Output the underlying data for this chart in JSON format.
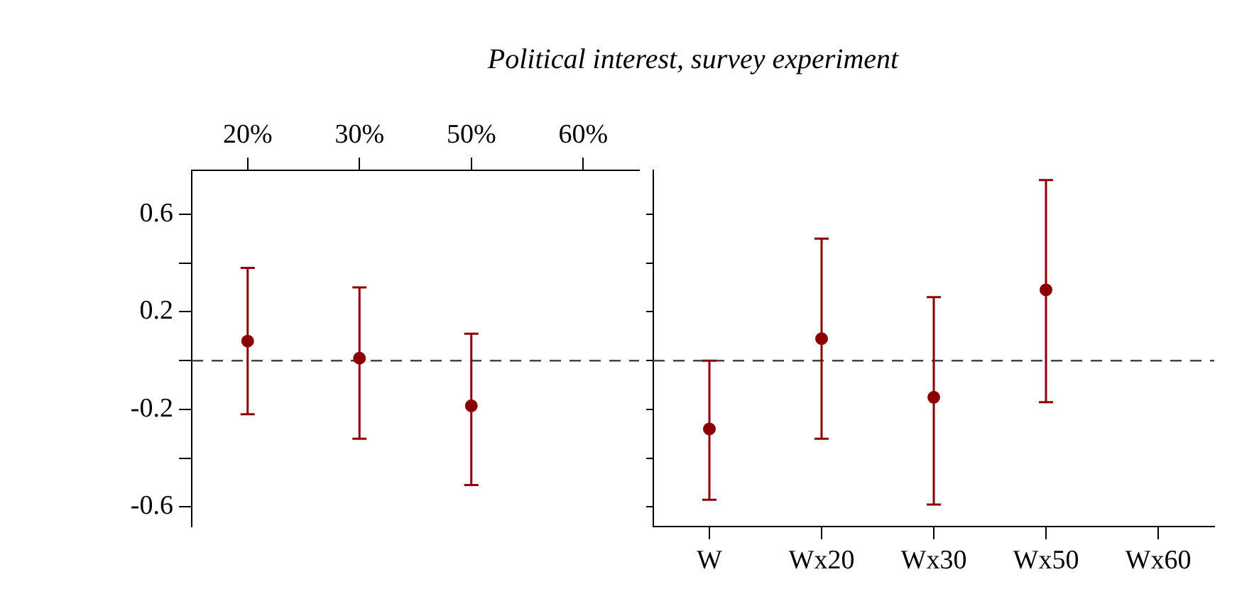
{
  "chart_data": [
    {
      "type": "scatter",
      "title": "Political interest, survey experiment",
      "categories": [
        "20%",
        "30%",
        "50%",
        "60%"
      ],
      "series": [
        {
          "color": "#8b0000",
          "values": [
            0.08,
            0.01,
            -0.185,
            null
          ],
          "errors": [
            [
              -0.22,
              0.38
            ],
            [
              -0.32,
              0.3
            ],
            [
              -0.51,
              0.11
            ],
            null
          ]
        }
      ],
      "ylim": [
        -0.68,
        0.78
      ],
      "yticks": [
        -0.6,
        {
          "value": -0.4,
          "label": null
        },
        -0.2,
        {
          "value": 0,
          "label": null
        },
        0.2,
        {
          "value": 0.4,
          "label": null
        },
        0.6
      ],
      "ref_lines": [
        {
          "axis": "y",
          "value": 0,
          "line_style": "dashed"
        }
      ],
      "marker": "circle"
    },
    {
      "type": "scatter",
      "categories": [
        "W",
        "Wx20",
        "Wx30",
        "Wx50",
        "Wx60"
      ],
      "series": [
        {
          "color": "#8b0000",
          "values": [
            -0.28,
            0.09,
            -0.15,
            0.29,
            null
          ],
          "errors": [
            [
              -0.57,
              0.0
            ],
            [
              -0.32,
              0.5
            ],
            [
              -0.59,
              0.26
            ],
            [
              -0.17,
              0.74
            ],
            null
          ]
        }
      ],
      "ylim": [
        -0.68,
        0.78
      ],
      "yticks": [
        -0.6,
        {
          "value": -0.4,
          "label": null
        },
        -0.2,
        {
          "value": 0,
          "label": null
        },
        0.2,
        {
          "value": 0.4,
          "label": null
        },
        0.6
      ],
      "tick_labels": "x",
      "ref_lines": [
        {
          "axis": "y",
          "value": 0,
          "line_style": "dashed"
        }
      ],
      "marker": "circle"
    }
  ]
}
